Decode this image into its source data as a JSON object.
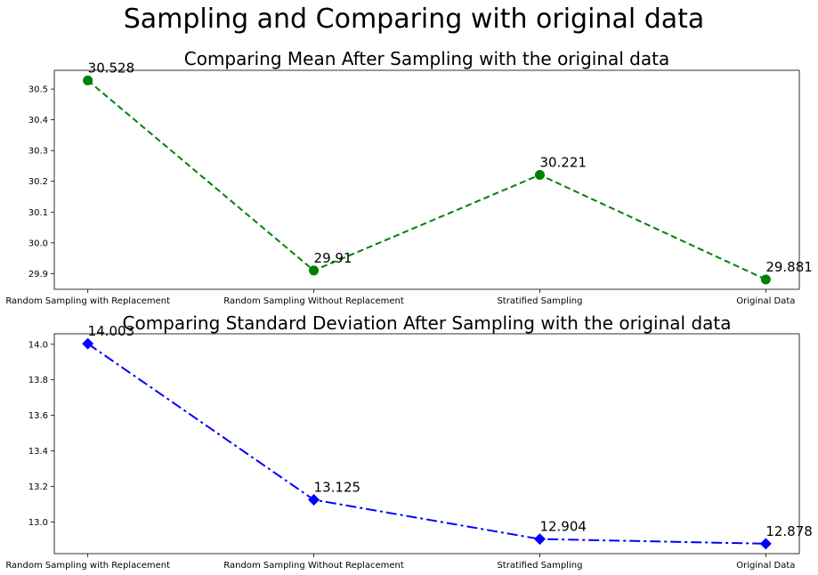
{
  "figure": {
    "title": "Sampling and Comparing with original data"
  },
  "chart_data": [
    {
      "type": "line",
      "title": "Comparing Mean After Sampling with the original data",
      "xlabel": "",
      "ylabel": "",
      "categories": [
        "Random Sampling with Replacement",
        "Random Sampling Without Replacement",
        "Stratified Sampling",
        "Original Data"
      ],
      "values": [
        30.528,
        29.91,
        30.221,
        29.881
      ],
      "data_labels": [
        "30.528",
        "29.91",
        "30.221",
        "29.881"
      ],
      "yticks": [
        29.9,
        30.0,
        30.1,
        30.2,
        30.3,
        30.4,
        30.5
      ],
      "ytick_labels": [
        "29.9",
        "30.0",
        "30.1",
        "30.2",
        "30.3",
        "30.4",
        "30.5"
      ],
      "ylim": [
        29.849,
        30.561
      ],
      "style": {
        "color": "#008000",
        "line": "dashed",
        "marker": "circle"
      },
      "grid": false,
      "legend": false
    },
    {
      "type": "line",
      "title": "Comparing Standard Deviation After Sampling with the original data",
      "xlabel": "",
      "ylabel": "",
      "categories": [
        "Random Sampling with Replacement",
        "Random Sampling Without Replacement",
        "Stratified Sampling",
        "Original Data"
      ],
      "values": [
        14.003,
        13.125,
        12.904,
        12.878
      ],
      "data_labels": [
        "14.003",
        "13.125",
        "12.904",
        "12.878"
      ],
      "yticks": [
        13.0,
        13.2,
        13.4,
        13.6,
        13.8,
        14.0
      ],
      "ytick_labels": [
        "13.0",
        "13.2",
        "13.4",
        "13.6",
        "13.8",
        "14.0"
      ],
      "ylim": [
        12.822,
        14.059
      ],
      "style": {
        "color": "#0000ff",
        "line": "dashdot",
        "marker": "diamond"
      },
      "grid": false,
      "legend": false
    }
  ]
}
